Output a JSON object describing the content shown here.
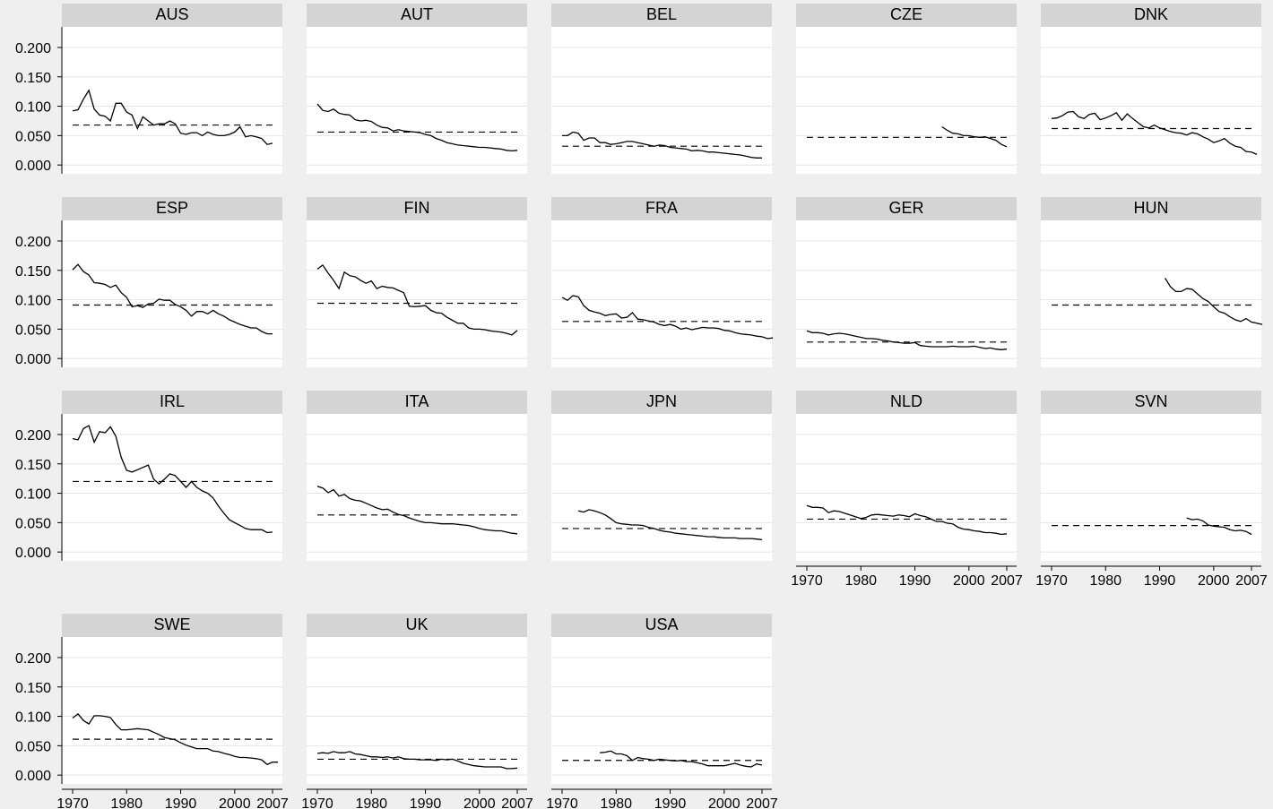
{
  "chart_data": {
    "type": "line",
    "layout": "small-multiples",
    "x_ticks": [
      1970,
      1980,
      1990,
      2000,
      2007
    ],
    "x_tick_labels": [
      "1970",
      "1980",
      "1990",
      "2000",
      "2007"
    ],
    "y_ticks": [
      0,
      0.05,
      0.1,
      0.15,
      0.2
    ],
    "y_tick_labels": [
      "0.000",
      "0.050",
      "0.100",
      "0.150",
      "0.200"
    ],
    "xlim": [
      1968,
      2008
    ],
    "ylim": [
      -0.015,
      0.235
    ],
    "grid": true,
    "panels": [
      {
        "name": "AUS",
        "mean": 0.068,
        "start": 1970,
        "values": [
          0.092,
          0.094,
          0.112,
          0.127,
          0.095,
          0.085,
          0.083,
          0.075,
          0.105,
          0.105,
          0.09,
          0.085,
          0.062,
          0.082,
          0.075,
          0.068,
          0.07,
          0.07,
          0.075,
          0.07,
          0.054,
          0.052,
          0.055,
          0.055,
          0.05,
          0.056,
          0.052,
          0.05,
          0.05,
          0.052,
          0.056,
          0.065,
          0.048,
          0.05,
          0.048,
          0.045,
          0.035,
          0.037
        ]
      },
      {
        "name": "AUT",
        "mean": 0.056,
        "start": 1970,
        "values": [
          0.104,
          0.093,
          0.091,
          0.095,
          0.088,
          0.086,
          0.085,
          0.077,
          0.075,
          0.076,
          0.074,
          0.068,
          0.064,
          0.063,
          0.058,
          0.06,
          0.058,
          0.057,
          0.056,
          0.055,
          0.052,
          0.05,
          0.045,
          0.042,
          0.038,
          0.036,
          0.034,
          0.033,
          0.032,
          0.031,
          0.03,
          0.03,
          0.029,
          0.028,
          0.027,
          0.025,
          0.024,
          0.025
        ]
      },
      {
        "name": "BEL",
        "mean": 0.032,
        "start": 1970,
        "values": [
          0.05,
          0.05,
          0.056,
          0.054,
          0.042,
          0.046,
          0.046,
          0.038,
          0.038,
          0.035,
          0.036,
          0.038,
          0.04,
          0.04,
          0.038,
          0.036,
          0.034,
          0.032,
          0.034,
          0.033,
          0.03,
          0.029,
          0.028,
          0.027,
          0.024,
          0.025,
          0.024,
          0.022,
          0.022,
          0.021,
          0.02,
          0.019,
          0.018,
          0.017,
          0.015,
          0.013,
          0.012,
          0.012
        ]
      },
      {
        "name": "CZE",
        "mean": 0.047,
        "start": 1995,
        "values": [
          0.065,
          0.059,
          0.054,
          0.053,
          0.05,
          0.05,
          0.048,
          0.047,
          0.048,
          0.045,
          0.042,
          0.035,
          0.031
        ]
      },
      {
        "name": "DNK",
        "mean": 0.062,
        "start": 1970,
        "values": [
          0.079,
          0.08,
          0.084,
          0.09,
          0.091,
          0.082,
          0.079,
          0.086,
          0.088,
          0.077,
          0.08,
          0.084,
          0.089,
          0.076,
          0.087,
          0.079,
          0.072,
          0.065,
          0.063,
          0.068,
          0.063,
          0.06,
          0.057,
          0.055,
          0.054,
          0.051,
          0.055,
          0.053,
          0.048,
          0.044,
          0.038,
          0.041,
          0.045,
          0.037,
          0.032,
          0.03,
          0.023,
          0.022,
          0.018
        ]
      },
      {
        "name": "ESP",
        "mean": 0.091,
        "start": 1970,
        "values": [
          0.151,
          0.16,
          0.148,
          0.142,
          0.129,
          0.128,
          0.126,
          0.121,
          0.125,
          0.112,
          0.104,
          0.088,
          0.09,
          0.087,
          0.093,
          0.094,
          0.101,
          0.099,
          0.099,
          0.092,
          0.088,
          0.082,
          0.072,
          0.08,
          0.08,
          0.076,
          0.082,
          0.076,
          0.072,
          0.066,
          0.062,
          0.058,
          0.055,
          0.052,
          0.052,
          0.046,
          0.042,
          0.042
        ]
      },
      {
        "name": "FIN",
        "mean": 0.094,
        "start": 1970,
        "values": [
          0.152,
          0.159,
          0.145,
          0.133,
          0.119,
          0.147,
          0.141,
          0.139,
          0.133,
          0.128,
          0.132,
          0.119,
          0.123,
          0.121,
          0.12,
          0.116,
          0.112,
          0.089,
          0.088,
          0.089,
          0.09,
          0.082,
          0.078,
          0.077,
          0.07,
          0.065,
          0.06,
          0.06,
          0.052,
          0.05,
          0.05,
          0.049,
          0.047,
          0.046,
          0.045,
          0.043,
          0.04,
          0.048
        ]
      },
      {
        "name": "FRA",
        "mean": 0.063,
        "start": 1970,
        "values": [
          0.104,
          0.099,
          0.107,
          0.105,
          0.09,
          0.082,
          0.079,
          0.077,
          0.073,
          0.075,
          0.076,
          0.069,
          0.07,
          0.078,
          0.067,
          0.066,
          0.064,
          0.062,
          0.058,
          0.056,
          0.058,
          0.055,
          0.05,
          0.052,
          0.049,
          0.051,
          0.053,
          0.052,
          0.052,
          0.051,
          0.048,
          0.047,
          0.044,
          0.042,
          0.041,
          0.04,
          0.038,
          0.037,
          0.034,
          0.035
        ]
      },
      {
        "name": "GER",
        "mean": 0.028,
        "start": 1970,
        "values": [
          0.047,
          0.044,
          0.044,
          0.043,
          0.04,
          0.042,
          0.043,
          0.042,
          0.04,
          0.038,
          0.036,
          0.034,
          0.034,
          0.033,
          0.031,
          0.03,
          0.028,
          0.027,
          0.026,
          0.026,
          0.027,
          0.022,
          0.021,
          0.02,
          0.02,
          0.02,
          0.02,
          0.021,
          0.02,
          0.02,
          0.02,
          0.021,
          0.019,
          0.017,
          0.018,
          0.016,
          0.015,
          0.016
        ]
      },
      {
        "name": "HUN",
        "mean": 0.091,
        "start": 1991,
        "values": [
          0.137,
          0.122,
          0.114,
          0.114,
          0.119,
          0.118,
          0.11,
          0.102,
          0.097,
          0.088,
          0.08,
          0.077,
          0.071,
          0.066,
          0.063,
          0.068,
          0.062,
          0.06,
          0.058
        ]
      },
      {
        "name": "IRL",
        "mean": 0.12,
        "start": 1970,
        "values": [
          0.193,
          0.191,
          0.21,
          0.215,
          0.187,
          0.205,
          0.203,
          0.213,
          0.197,
          0.161,
          0.139,
          0.136,
          0.14,
          0.144,
          0.148,
          0.124,
          0.116,
          0.124,
          0.133,
          0.13,
          0.12,
          0.11,
          0.12,
          0.11,
          0.104,
          0.1,
          0.092,
          0.078,
          0.066,
          0.055,
          0.05,
          0.045,
          0.04,
          0.038,
          0.038,
          0.038,
          0.033,
          0.034
        ]
      },
      {
        "name": "ITA",
        "mean": 0.063,
        "start": 1970,
        "values": [
          0.112,
          0.109,
          0.101,
          0.106,
          0.095,
          0.098,
          0.091,
          0.088,
          0.087,
          0.083,
          0.079,
          0.075,
          0.072,
          0.073,
          0.068,
          0.064,
          0.062,
          0.058,
          0.055,
          0.052,
          0.05,
          0.05,
          0.049,
          0.048,
          0.048,
          0.048,
          0.047,
          0.046,
          0.045,
          0.043,
          0.04,
          0.038,
          0.037,
          0.036,
          0.036,
          0.034,
          0.032,
          0.031
        ]
      },
      {
        "name": "JPN",
        "mean": 0.04,
        "start": 1973,
        "values": [
          0.07,
          0.068,
          0.072,
          0.07,
          0.067,
          0.063,
          0.057,
          0.05,
          0.048,
          0.047,
          0.046,
          0.046,
          0.045,
          0.042,
          0.04,
          0.037,
          0.035,
          0.034,
          0.032,
          0.031,
          0.03,
          0.029,
          0.028,
          0.027,
          0.026,
          0.026,
          0.025,
          0.024,
          0.024,
          0.024,
          0.023,
          0.023,
          0.023,
          0.022,
          0.021
        ]
      },
      {
        "name": "NLD",
        "mean": 0.056,
        "start": 1970,
        "values": [
          0.079,
          0.076,
          0.076,
          0.075,
          0.067,
          0.07,
          0.069,
          0.066,
          0.063,
          0.06,
          0.057,
          0.059,
          0.063,
          0.064,
          0.063,
          0.062,
          0.061,
          0.063,
          0.062,
          0.06,
          0.065,
          0.062,
          0.06,
          0.056,
          0.052,
          0.052,
          0.049,
          0.048,
          0.042,
          0.039,
          0.038,
          0.036,
          0.035,
          0.033,
          0.033,
          0.032,
          0.03,
          0.031
        ]
      },
      {
        "name": "SVN",
        "mean": 0.045,
        "start": 1995,
        "values": [
          0.058,
          0.055,
          0.056,
          0.053,
          0.046,
          0.044,
          0.043,
          0.042,
          0.038,
          0.036,
          0.037,
          0.035,
          0.03
        ]
      },
      {
        "name": "SWE",
        "mean": 0.061,
        "start": 1970,
        "values": [
          0.097,
          0.104,
          0.093,
          0.087,
          0.101,
          0.101,
          0.1,
          0.098,
          0.086,
          0.077,
          0.077,
          0.078,
          0.079,
          0.078,
          0.077,
          0.073,
          0.069,
          0.064,
          0.062,
          0.06,
          0.055,
          0.051,
          0.048,
          0.045,
          0.045,
          0.045,
          0.041,
          0.04,
          0.037,
          0.035,
          0.032,
          0.03,
          0.03,
          0.029,
          0.028,
          0.026,
          0.018,
          0.022,
          0.022
        ]
      },
      {
        "name": "UK",
        "mean": 0.027,
        "start": 1970,
        "values": [
          0.037,
          0.038,
          0.037,
          0.04,
          0.038,
          0.038,
          0.04,
          0.036,
          0.035,
          0.033,
          0.031,
          0.031,
          0.03,
          0.031,
          0.029,
          0.031,
          0.028,
          0.027,
          0.027,
          0.026,
          0.026,
          0.026,
          0.025,
          0.027,
          0.026,
          0.027,
          0.024,
          0.02,
          0.018,
          0.016,
          0.015,
          0.014,
          0.014,
          0.014,
          0.014,
          0.011,
          0.011,
          0.012
        ]
      },
      {
        "name": "USA",
        "mean": 0.025,
        "start": 1977,
        "values": [
          0.038,
          0.039,
          0.041,
          0.036,
          0.036,
          0.033,
          0.025,
          0.03,
          0.028,
          0.027,
          0.025,
          0.027,
          0.026,
          0.025,
          0.024,
          0.025,
          0.023,
          0.023,
          0.021,
          0.019,
          0.016,
          0.016,
          0.016,
          0.016,
          0.018,
          0.02,
          0.017,
          0.015,
          0.014,
          0.019,
          0.017
        ]
      }
    ]
  }
}
